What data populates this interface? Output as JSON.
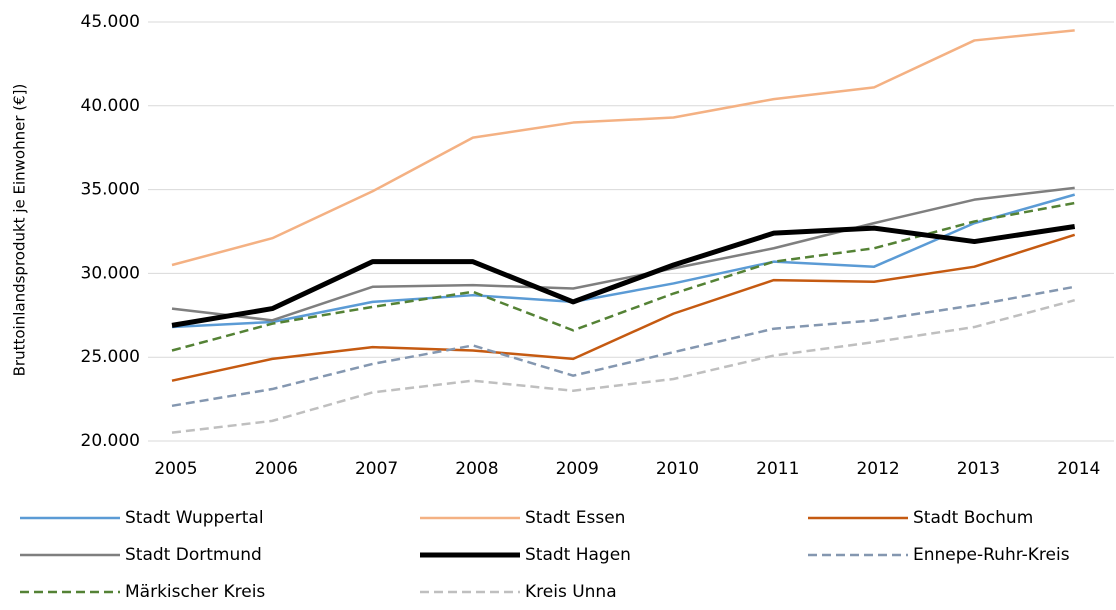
{
  "chart_data": {
    "type": "line",
    "y_label": "Bruttoinlandsprodukt je Einwohner  (€])",
    "categories": [
      "2005",
      "2006",
      "2007",
      "2008",
      "2009",
      "2010",
      "2011",
      "2012",
      "2013",
      "2014"
    ],
    "ylim": [
      20000,
      45000
    ],
    "yticks": [
      {
        "value": 20000,
        "label": "20.000"
      },
      {
        "value": 25000,
        "label": "25.000"
      },
      {
        "value": 30000,
        "label": "30.000"
      },
      {
        "value": 35000,
        "label": "35.000"
      },
      {
        "value": 40000,
        "label": "40.000"
      },
      {
        "value": 45000,
        "label": "45.000"
      }
    ],
    "grid": true,
    "legend": "bottom",
    "series": [
      {
        "name": "Stadt Wuppertal",
        "color": "#5b9bd5",
        "linewidth": 2.5,
        "dashed": false,
        "values": [
          26800,
          27100,
          28300,
          28700,
          28300,
          29400,
          30700,
          30400,
          33000,
          34700
        ]
      },
      {
        "name": "Stadt Essen",
        "color": "#f4b183",
        "linewidth": 2.5,
        "dashed": false,
        "values": [
          30500,
          32100,
          34900,
          38100,
          39000,
          39300,
          40400,
          41100,
          43900,
          44500
        ]
      },
      {
        "name": "Stadt Bochum",
        "color": "#c55a11",
        "linewidth": 2.5,
        "dashed": false,
        "values": [
          23600,
          24900,
          25600,
          25400,
          24900,
          27600,
          29600,
          29500,
          30400,
          32300
        ]
      },
      {
        "name": "Stadt Dortmund",
        "color": "#7f7f7f",
        "linewidth": 2.5,
        "dashed": false,
        "values": [
          27900,
          27200,
          29200,
          29300,
          29100,
          30300,
          31500,
          33000,
          34400,
          35100
        ]
      },
      {
        "name": "Stadt Hagen",
        "color": "#000000",
        "linewidth": 5,
        "dashed": false,
        "values": [
          26900,
          27900,
          30700,
          30700,
          28300,
          30500,
          32400,
          32700,
          31900,
          32800
        ]
      },
      {
        "name": "Ennepe-Ruhr-Kreis",
        "color": "#8497b0",
        "linewidth": 2.5,
        "dashed": true,
        "values": [
          22100,
          23100,
          24600,
          25700,
          23900,
          25300,
          26700,
          27200,
          28100,
          29200
        ]
      },
      {
        "name": "Märkischer Kreis",
        "color": "#548235",
        "linewidth": 2.5,
        "dashed": true,
        "values": [
          25400,
          27000,
          28000,
          28900,
          26600,
          28800,
          30700,
          31500,
          33100,
          34200
        ]
      },
      {
        "name": "Kreis Unna",
        "color": "#bfbfbf",
        "linewidth": 2.5,
        "dashed": true,
        "values": [
          20500,
          21200,
          22900,
          23600,
          23000,
          23700,
          25100,
          25900,
          26800,
          28400
        ]
      }
    ]
  }
}
